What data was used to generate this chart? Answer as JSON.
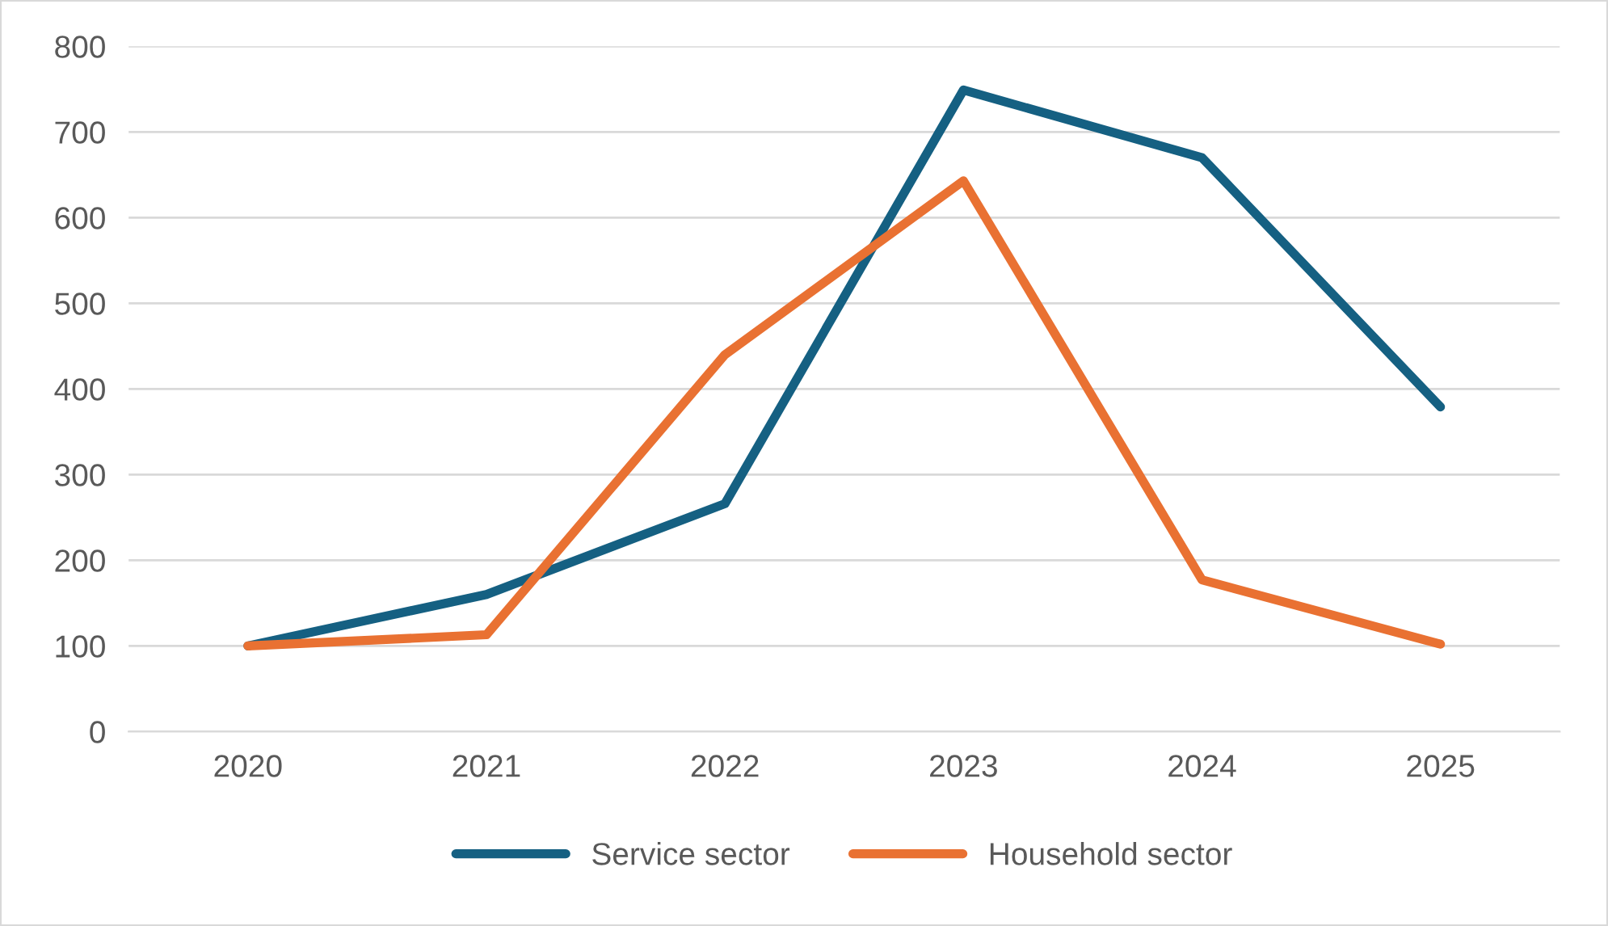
{
  "chart_data": {
    "type": "line",
    "categories": [
      "2020",
      "2021",
      "2022",
      "2023",
      "2024",
      "2025"
    ],
    "series": [
      {
        "name": "Service sector",
        "color": "#156082",
        "values": [
          100,
          160,
          266,
          749,
          670,
          379
        ]
      },
      {
        "name": "Household sector",
        "color": "#e97132",
        "values": [
          100,
          113,
          440,
          643,
          177,
          102
        ]
      }
    ],
    "ylim": [
      0,
      800
    ],
    "yticks": [
      0,
      100,
      200,
      300,
      400,
      500,
      600,
      700,
      800
    ],
    "grid": "y",
    "legend": "bottom",
    "marker": "none",
    "line_style": "solid"
  }
}
